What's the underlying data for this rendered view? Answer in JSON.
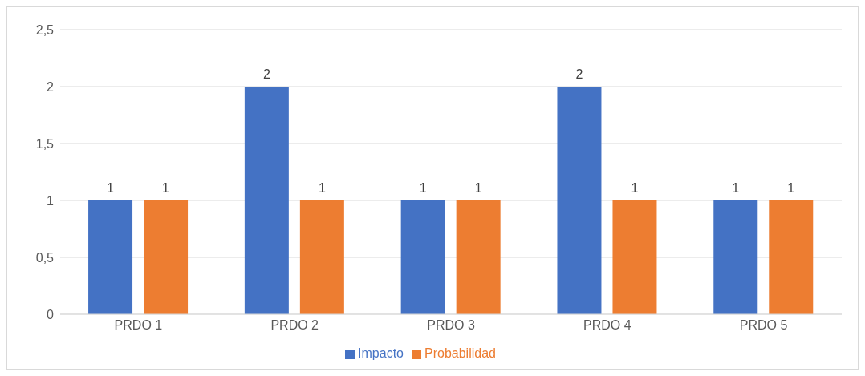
{
  "chart_data": {
    "type": "bar",
    "categories": [
      "PRDO 1",
      "PRDO 2",
      "PRDO 3",
      "PRDO 4",
      "PRDO 5"
    ],
    "series": [
      {
        "name": "Impacto",
        "color": "#4472c4",
        "values": [
          1,
          2,
          1,
          2,
          1
        ]
      },
      {
        "name": "Probabilidad",
        "color": "#ed7d31",
        "values": [
          1,
          1,
          1,
          1,
          1
        ]
      }
    ],
    "ylim": [
      0,
      2.5
    ],
    "yticks": [
      0,
      {
        "value": 0.5,
        "label": "0,5"
      },
      1,
      {
        "value": 1.5,
        "label": "1,5"
      },
      2,
      {
        "value": 2.5,
        "label": "2,5"
      }
    ],
    "grid": "y",
    "legend": "bottom",
    "data_labels": true
  }
}
